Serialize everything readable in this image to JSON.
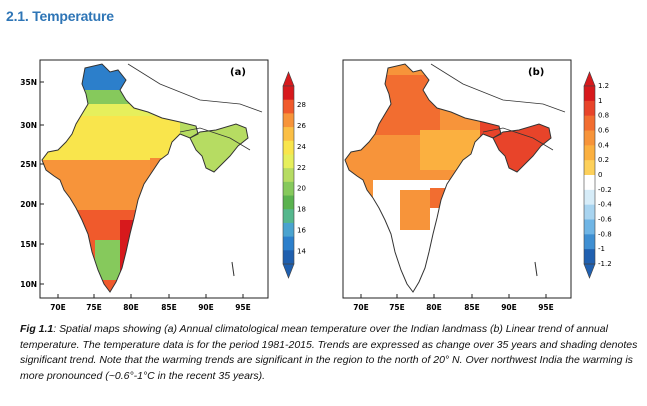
{
  "section": {
    "title": "2.1. Temperature"
  },
  "panel_a": {
    "label": "(a)",
    "lat_ticks": [
      "35N",
      "30N",
      "25N",
      "20N",
      "15N",
      "10N"
    ],
    "lon_ticks": [
      "70E",
      "75E",
      "80E",
      "85E",
      "90E",
      "95E"
    ],
    "colorbar": {
      "ticks": [
        "28",
        "26",
        "24",
        "22",
        "20",
        "18",
        "16",
        "14"
      ],
      "colors": [
        "#d7191c",
        "#f05a2c",
        "#f7943a",
        "#fbbf45",
        "#f9e54c",
        "#e6ef5c",
        "#b6dc62",
        "#86c95c",
        "#5ab24f",
        "#55b78d",
        "#4aa3cf",
        "#2c7fcb",
        "#1f5fae"
      ]
    }
  },
  "panel_b": {
    "label": "(b)",
    "lon_ticks": [
      "70E",
      "75E",
      "80E",
      "85E",
      "90E",
      "95E"
    ],
    "colorbar": {
      "ticks": [
        "1.2",
        "1",
        "0.8",
        "0.6",
        "0.4",
        "0.2",
        "0",
        "-0.2",
        "-0.4",
        "-0.6",
        "-0.8",
        "-1",
        "-1.2"
      ],
      "colors": [
        "#d7191c",
        "#e8442a",
        "#f26d30",
        "#f7943a",
        "#fbb040",
        "#fdd05a",
        "#ffffff",
        "#d6ecf8",
        "#a8d4f0",
        "#6fb5e5",
        "#3f8fd2",
        "#2060b0"
      ]
    }
  },
  "caption": {
    "label": "Fig 1.1",
    "text": ": Spatial maps showing (a) Annual climatological mean temperature over the Indian landmass (b) Linear trend of annual temperature. The temperature data is for the period 1981-2015. Trends are expressed as change over 35 years and shading denotes significant trend. Note that the warming trends are significant in the region to the north of 20° N. Over northwest India the warming is more pronounced (~0.6°-1°C in the recent 35 years)."
  }
}
